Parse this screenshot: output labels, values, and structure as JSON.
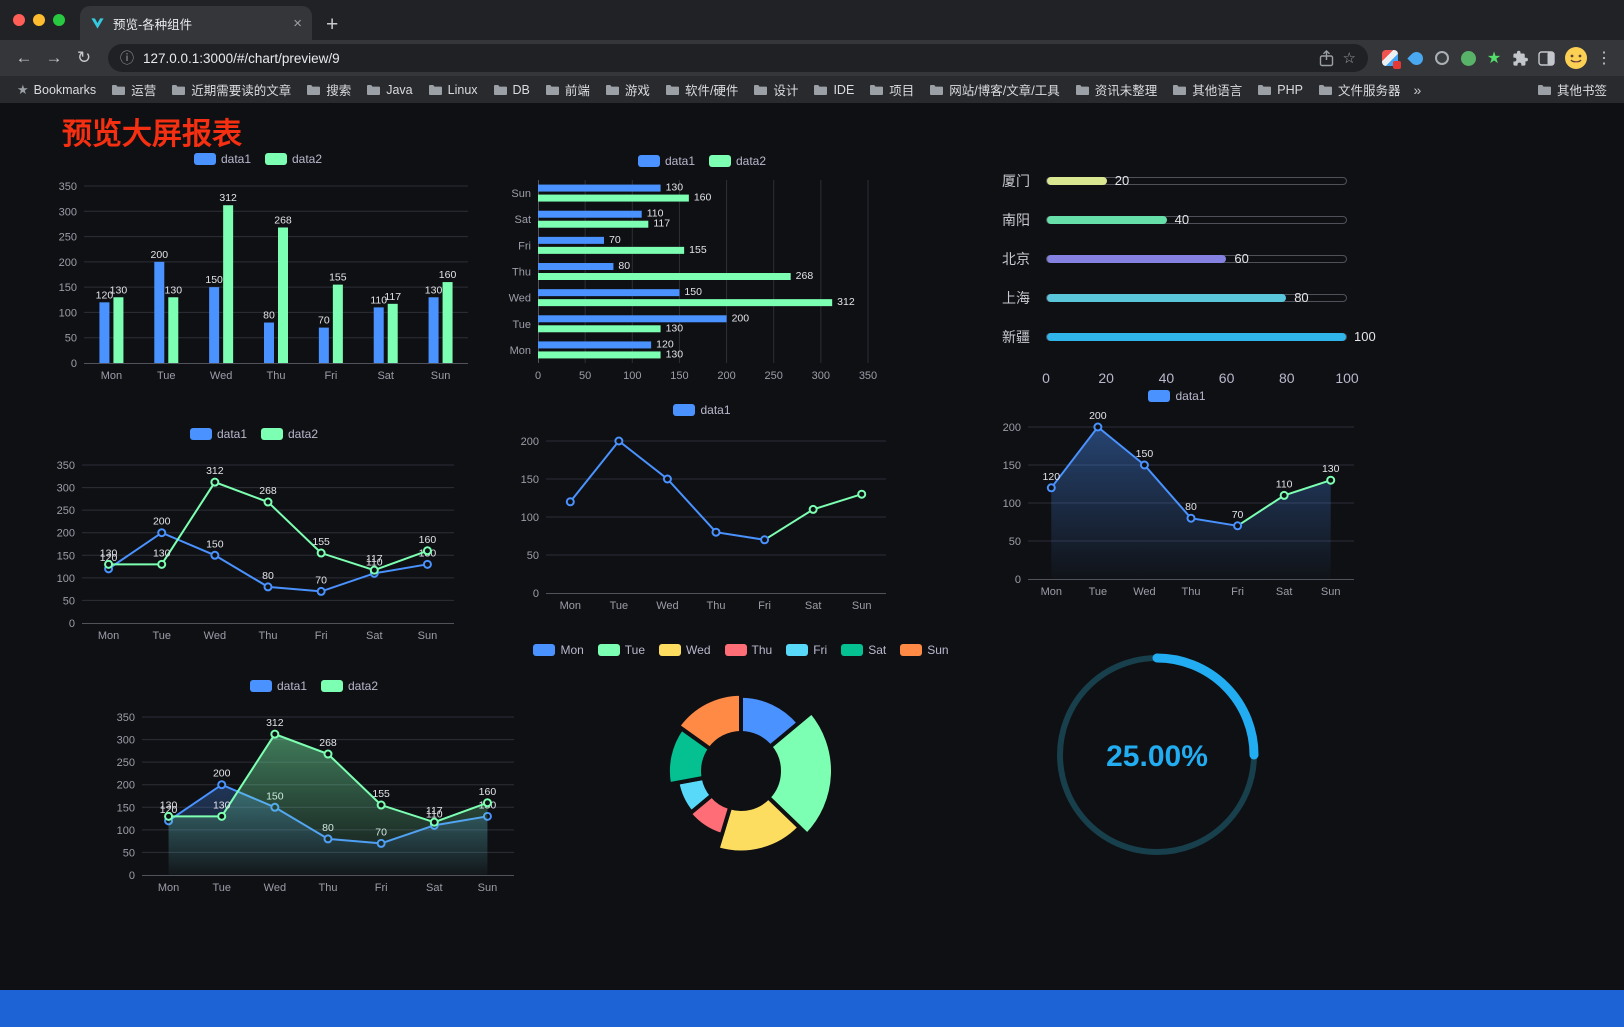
{
  "browser": {
    "tab_title": "预览-各种组件",
    "url": "127.0.0.1:3000/#/chart/preview/9",
    "bookmarks_label": "Bookmarks",
    "bookmark_folders": [
      "运营",
      "近期需要读的文章",
      "搜索",
      "Java",
      "Linux",
      "DB",
      "前端",
      "游戏",
      "软件/硬件",
      "设计",
      "IDE",
      "项目",
      "网站/博客/文章/工具",
      "资讯未整理",
      "其他语言",
      "PHP",
      "文件服务器"
    ],
    "overflow_chevron": "»",
    "other_bookmarks_label": "其他书签"
  },
  "page": {
    "title": "预览大屏报表"
  },
  "colors": {
    "page_background": "#0f1013",
    "title_red": "#f52f11",
    "series_blue": "#4992ff",
    "series_green": "#7cffb2",
    "gauge_blue": "#22acf1",
    "footer_blue": "#1e63d6"
  },
  "chart_data": [
    {
      "id": "grouped-bar",
      "type": "bar",
      "legend": [
        "data1",
        "data2"
      ],
      "legend_position": "top",
      "categories": [
        "Mon",
        "Tue",
        "Wed",
        "Thu",
        "Fri",
        "Sat",
        "Sun"
      ],
      "series": [
        {
          "name": "data1",
          "color": "#4992ff",
          "values": [
            120,
            200,
            150,
            80,
            70,
            110,
            130
          ]
        },
        {
          "name": "data2",
          "color": "#7cffb2",
          "values": [
            130,
            130,
            312,
            268,
            155,
            117,
            160
          ]
        }
      ],
      "ylim": [
        0,
        350
      ],
      "yticks": [
        0,
        50,
        100,
        150,
        200,
        250,
        300,
        350
      ],
      "grid": true,
      "show_labels": true
    },
    {
      "id": "grouped-hbar",
      "type": "hbar",
      "legend": [
        "data1",
        "data2"
      ],
      "legend_position": "top",
      "categories": [
        "Mon",
        "Tue",
        "Wed",
        "Thu",
        "Fri",
        "Sat",
        "Sun"
      ],
      "series": [
        {
          "name": "data1",
          "color": "#4992ff",
          "values": [
            120,
            200,
            150,
            80,
            70,
            110,
            130
          ]
        },
        {
          "name": "data2",
          "color": "#7cffb2",
          "values": [
            130,
            130,
            312,
            268,
            155,
            117,
            160
          ]
        }
      ],
      "xlim": [
        0,
        350
      ],
      "xticks": [
        0,
        50,
        100,
        150,
        200,
        250,
        300,
        350
      ],
      "grid": true,
      "show_labels": true
    },
    {
      "id": "city-progress",
      "type": "progress",
      "xlim": [
        0,
        100
      ],
      "xticks": [
        0,
        20,
        40,
        60,
        80,
        100
      ],
      "items": [
        {
          "label": "厦门",
          "value": 20,
          "color": "#d9e791"
        },
        {
          "label": "南阳",
          "value": 40,
          "color": "#67dfa9"
        },
        {
          "label": "北京",
          "value": 60,
          "color": "#8481e0"
        },
        {
          "label": "上海",
          "value": 80,
          "color": "#59c6dc"
        },
        {
          "label": "新疆",
          "value": 100,
          "color": "#2fb5ea"
        }
      ]
    },
    {
      "id": "multi-line",
      "type": "line",
      "legend": [
        "data1",
        "data2"
      ],
      "legend_position": "top",
      "categories": [
        "Mon",
        "Tue",
        "Wed",
        "Thu",
        "Fri",
        "Sat",
        "Sun"
      ],
      "series": [
        {
          "name": "data1",
          "color": "#4992ff",
          "values": [
            120,
            200,
            150,
            80,
            70,
            110,
            130
          ]
        },
        {
          "name": "data2",
          "color": "#7cffb2",
          "values": [
            130,
            130,
            312,
            268,
            155,
            117,
            160
          ]
        }
      ],
      "ylim": [
        0,
        350
      ],
      "yticks": [
        0,
        50,
        100,
        150,
        200,
        250,
        300,
        350
      ],
      "grid": true,
      "show_labels": true
    },
    {
      "id": "single-line",
      "type": "line",
      "legend": [
        "data1"
      ],
      "legend_position": "top",
      "categories": [
        "Mon",
        "Tue",
        "Wed",
        "Thu",
        "Fri",
        "Sat",
        "Sun"
      ],
      "series": [
        {
          "name": "data1",
          "color": "#4992ff",
          "values": [
            120,
            200,
            150,
            80,
            70,
            110,
            130
          ],
          "tail": {
            "start_index": 4,
            "color": "#7cffb2"
          }
        }
      ],
      "ylim": [
        0,
        200
      ],
      "yticks": [
        0,
        50,
        100,
        150,
        200
      ],
      "grid": true,
      "show_labels": false
    },
    {
      "id": "single-area-line",
      "type": "line",
      "legend": [
        "data1"
      ],
      "legend_position": "top",
      "categories": [
        "Mon",
        "Tue",
        "Wed",
        "Thu",
        "Fri",
        "Sat",
        "Sun"
      ],
      "series": [
        {
          "name": "data1",
          "color": "#4992ff",
          "values": [
            120,
            200,
            150,
            80,
            70,
            110,
            130
          ],
          "area": true,
          "area_opacity": 0.4,
          "tail": {
            "start_index": 4,
            "color": "#7cffb2"
          }
        }
      ],
      "ylim": [
        0,
        200
      ],
      "yticks": [
        0,
        50,
        100,
        150,
        200
      ],
      "grid": true,
      "show_labels": true
    },
    {
      "id": "multi-area-line",
      "type": "line",
      "legend": [
        "data1",
        "data2"
      ],
      "legend_position": "top",
      "categories": [
        "Mon",
        "Tue",
        "Wed",
        "Thu",
        "Fri",
        "Sat",
        "Sun"
      ],
      "series": [
        {
          "name": "data1",
          "color": "#4992ff",
          "values": [
            120,
            200,
            150,
            80,
            70,
            110,
            130
          ],
          "area": true,
          "area_opacity": 0.3
        },
        {
          "name": "data2",
          "color": "#7cffb2",
          "values": [
            130,
            130,
            312,
            268,
            155,
            117,
            160
          ],
          "area": true,
          "area_opacity": 0.45
        }
      ],
      "ylim": [
        0,
        350
      ],
      "yticks": [
        0,
        50,
        100,
        150,
        200,
        250,
        300,
        350
      ],
      "grid": true,
      "show_labels": true
    },
    {
      "id": "weekday-rose-pie",
      "type": "pie",
      "rose": true,
      "donut": true,
      "legend": [
        "Mon",
        "Tue",
        "Wed",
        "Thu",
        "Fri",
        "Sat",
        "Sun"
      ],
      "legend_position": "top",
      "items": [
        {
          "name": "Mon",
          "value": 120,
          "color": "#4992ff"
        },
        {
          "name": "Tue",
          "value": 200,
          "color": "#7cffb2"
        },
        {
          "name": "Wed",
          "value": 150,
          "color": "#fddd60"
        },
        {
          "name": "Thu",
          "value": 80,
          "color": "#ff6e76"
        },
        {
          "name": "Fri",
          "value": 70,
          "color": "#58d9f9"
        },
        {
          "name": "Sat",
          "value": 110,
          "color": "#05c091"
        },
        {
          "name": "Sun",
          "value": 130,
          "color": "#ff8a45"
        }
      ]
    },
    {
      "id": "percent-gauge",
      "type": "gauge",
      "value": 25,
      "display": "25.00%",
      "color": "#22acf1",
      "track_color": "#173f4c"
    }
  ]
}
